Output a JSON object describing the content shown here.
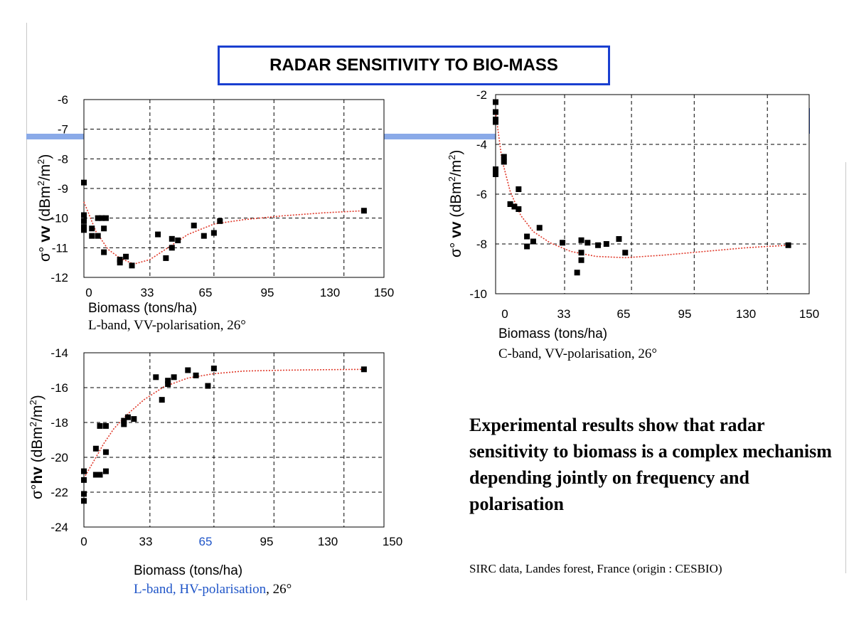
{
  "title": "RADAR SENSITIVITY TO BIO-MASS",
  "conclusion": "Experimental results show that radar sensitivity to biomass is a complex mechanism depending jointly on frequency and polarisation",
  "source": "SIRC data, Landes forest, France (origin : CESBIO)",
  "colors": {
    "title_border": "#1a3fd0",
    "trend": "#e0392a",
    "point": "#000000",
    "accent": "#8aaae8",
    "blue_text": "#1f55c8"
  },
  "chart_data": [
    {
      "id": "lvv",
      "type": "scatter",
      "xlabel": "Biomass (tons/ha)",
      "caption": "L-band, VV-polarisation, 26°",
      "ylabel_prefix": "σ°",
      "ylabel_pol": "vv",
      "ylabel_unit_main": "(dBm",
      "ylabel_sup1": "2",
      "ylabel_mid": "/m",
      "ylabel_sup2": "2",
      "ylabel_close": ")",
      "xlim": [
        0,
        150
      ],
      "ylim": [
        -12,
        -6
      ],
      "xticks": [
        "0",
        "33",
        "65",
        "95",
        "130",
        "150"
      ],
      "xtick_values": [
        0,
        33,
        65,
        95,
        130,
        150
      ],
      "yticks": [
        "-6",
        "-7",
        "-8",
        "-9",
        "-10",
        "-11",
        "-12"
      ],
      "ytick_values": [
        -6,
        -7,
        -8,
        -9,
        -10,
        -11,
        -12
      ],
      "grid": true,
      "points": [
        [
          0,
          -8.8
        ],
        [
          0,
          -9.9
        ],
        [
          0,
          -10.1
        ],
        [
          0,
          -10.3
        ],
        [
          0,
          -10.4
        ],
        [
          4,
          -10.35
        ],
        [
          4,
          -10.6
        ],
        [
          7,
          -10.0
        ],
        [
          7,
          -10.6
        ],
        [
          9,
          -10.0
        ],
        [
          10,
          -11.15
        ],
        [
          10,
          -10.35
        ],
        [
          11,
          -10.0
        ],
        [
          18,
          -11.4
        ],
        [
          18,
          -11.5
        ],
        [
          21,
          -11.3
        ],
        [
          24,
          -11.6
        ],
        [
          37,
          -10.55
        ],
        [
          41,
          -11.35
        ],
        [
          44,
          -10.7
        ],
        [
          44,
          -11.0
        ],
        [
          47,
          -10.75
        ],
        [
          55,
          -10.25
        ],
        [
          60,
          -10.6
        ],
        [
          65,
          -10.5
        ],
        [
          68,
          -10.1
        ],
        [
          140,
          -9.75
        ]
      ],
      "trend": [
        [
          0,
          -9.45
        ],
        [
          6,
          -10.45
        ],
        [
          12,
          -11.05
        ],
        [
          18,
          -11.35
        ],
        [
          25,
          -11.55
        ],
        [
          33,
          -11.4
        ],
        [
          42,
          -11.0
        ],
        [
          52,
          -10.55
        ],
        [
          65,
          -10.2
        ],
        [
          80,
          -10.05
        ],
        [
          100,
          -9.92
        ],
        [
          120,
          -9.82
        ],
        [
          140,
          -9.75
        ]
      ],
      "xtick_blue": []
    },
    {
      "id": "cvv",
      "type": "scatter",
      "xlabel": "Biomass (tons/ha)",
      "caption": "C-band, VV-polarisation, 26°",
      "ylabel_prefix": "σ°",
      "ylabel_pol": "vv",
      "ylabel_unit_main": "(dBm",
      "ylabel_sup1": "2",
      "ylabel_mid": "/m",
      "ylabel_sup2": "2",
      "ylabel_close": ")",
      "xlim": [
        0,
        150
      ],
      "ylim": [
        -10,
        -2
      ],
      "xticks": [
        "0",
        "33",
        "65",
        "95",
        "130",
        "150"
      ],
      "xtick_values": [
        0,
        33,
        65,
        95,
        130,
        150
      ],
      "yticks": [
        "-2",
        "-4",
        "-6",
        "-8",
        "-10"
      ],
      "ytick_values": [
        -2,
        -4,
        -6,
        -8,
        -10
      ],
      "grid": true,
      "points": [
        [
          0,
          -2.3
        ],
        [
          0,
          -2.7
        ],
        [
          0,
          -3.0
        ],
        [
          0,
          -3.1
        ],
        [
          0,
          -5.0
        ],
        [
          0,
          -5.2
        ],
        [
          4,
          -4.5
        ],
        [
          4,
          -4.7
        ],
        [
          7,
          -6.4
        ],
        [
          9,
          -6.5
        ],
        [
          11,
          -5.8
        ],
        [
          11,
          -6.6
        ],
        [
          15,
          -7.7
        ],
        [
          15,
          -8.1
        ],
        [
          18,
          -7.9
        ],
        [
          21,
          -7.35
        ],
        [
          32,
          -7.95
        ],
        [
          39,
          -9.15
        ],
        [
          41,
          -7.85
        ],
        [
          41,
          -8.35
        ],
        [
          41,
          -8.65
        ],
        [
          44,
          -7.95
        ],
        [
          49,
          -8.05
        ],
        [
          53,
          -8.0
        ],
        [
          59,
          -7.8
        ],
        [
          62,
          -8.35
        ],
        [
          140,
          -8.05
        ]
      ],
      "trend": [
        [
          0,
          -2.7
        ],
        [
          3,
          -4.6
        ],
        [
          7,
          -5.9
        ],
        [
          12,
          -6.85
        ],
        [
          18,
          -7.5
        ],
        [
          26,
          -7.95
        ],
        [
          36,
          -8.3
        ],
        [
          48,
          -8.5
        ],
        [
          62,
          -8.55
        ],
        [
          80,
          -8.45
        ],
        [
          100,
          -8.3
        ],
        [
          120,
          -8.15
        ],
        [
          140,
          -8.05
        ]
      ],
      "xtick_blue": []
    },
    {
      "id": "lhv",
      "type": "scatter",
      "xlabel": "Biomass (tons/ha)",
      "caption_blue": "L-band, HV-polarisation",
      "caption_rest": ", 26°",
      "ylabel_prefix": "σ°",
      "ylabel_pol": "hv",
      "ylabel_unit_main": "(dBm",
      "ylabel_sup1": "2",
      "ylabel_mid": "/m",
      "ylabel_sup2": "2",
      "ylabel_close": ")",
      "xlim": [
        0,
        150
      ],
      "ylim": [
        -24,
        -14
      ],
      "xticks": [
        "0",
        "33",
        "65",
        "95",
        "130",
        "150"
      ],
      "xtick_values": [
        0,
        33,
        65,
        95,
        130,
        150
      ],
      "yticks": [
        "-14",
        "-16",
        "-18",
        "-20",
        "-22",
        "-24"
      ],
      "ytick_values": [
        -14,
        -16,
        -18,
        -20,
        -22,
        -24
      ],
      "grid": true,
      "points": [
        [
          0,
          -20.8
        ],
        [
          0,
          -21.3
        ],
        [
          0,
          -22.1
        ],
        [
          0,
          -22.5
        ],
        [
          6,
          -19.5
        ],
        [
          6,
          -21.0
        ],
        [
          8,
          -18.2
        ],
        [
          8,
          -21.0
        ],
        [
          11,
          -18.2
        ],
        [
          11,
          -19.7
        ],
        [
          11,
          -20.8
        ],
        [
          20,
          -17.9
        ],
        [
          20,
          -18.1
        ],
        [
          22,
          -17.7
        ],
        [
          25,
          -17.8
        ],
        [
          36,
          -15.4
        ],
        [
          39,
          -16.7
        ],
        [
          42,
          -15.6
        ],
        [
          42,
          -15.8
        ],
        [
          45,
          -15.4
        ],
        [
          52,
          -15.0
        ],
        [
          56,
          -15.3
        ],
        [
          62,
          -15.9
        ],
        [
          65,
          -14.9
        ],
        [
          140,
          -14.95
        ]
      ],
      "trend": [
        [
          0,
          -21.2
        ],
        [
          5,
          -20.2
        ],
        [
          10,
          -19.2
        ],
        [
          15,
          -18.35
        ],
        [
          22,
          -17.5
        ],
        [
          30,
          -16.7
        ],
        [
          40,
          -15.95
        ],
        [
          52,
          -15.45
        ],
        [
          65,
          -15.2
        ],
        [
          80,
          -15.05
        ],
        [
          100,
          -15.0
        ],
        [
          120,
          -14.97
        ],
        [
          140,
          -14.95
        ]
      ],
      "xtick_blue": [
        "65"
      ]
    }
  ]
}
